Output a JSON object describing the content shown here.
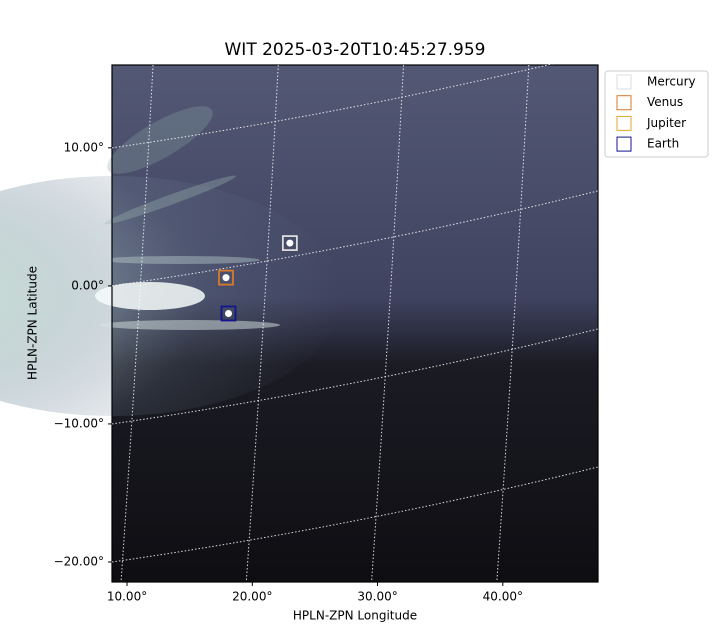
{
  "chart_data": {
    "type": "image",
    "title": "WIT 2025-03-20T10:45:27.959",
    "x_label": "HPLN-ZPN Longitude",
    "y_label": "HPLN-ZPN Latitude",
    "xlim": [
      8.8,
      47.6
    ],
    "ylim": [
      -21.45,
      16.0
    ],
    "xticks": [
      {
        "value": 10,
        "label": "10.00°"
      },
      {
        "value": 20,
        "label": "20.00°"
      },
      {
        "value": 30,
        "label": "30.00°"
      },
      {
        "value": 40,
        "label": "40.00°"
      }
    ],
    "yticks": [
      {
        "value": 10,
        "label": "10.00°"
      },
      {
        "value": 0,
        "label": "0.00°"
      },
      {
        "value": -10,
        "label": "−10.00°"
      },
      {
        "value": -20,
        "label": "−20.00°"
      }
    ],
    "grid": true,
    "legend": "outside-upper-right",
    "series": [
      {
        "name": "Mercury",
        "color": "#dddddd",
        "x": [
          23.0
        ],
        "y": [
          3.1
        ]
      },
      {
        "name": "Venus",
        "color": "#d9792b",
        "x": [
          17.9
        ],
        "y": [
          0.6
        ]
      },
      {
        "name": "Jupiter",
        "color": "#e2a72e",
        "x": [
          null
        ],
        "y": [
          null
        ]
      },
      {
        "name": "Earth",
        "color": "#14148c",
        "x": [
          18.1
        ],
        "y": [
          -2.0
        ]
      }
    ]
  }
}
